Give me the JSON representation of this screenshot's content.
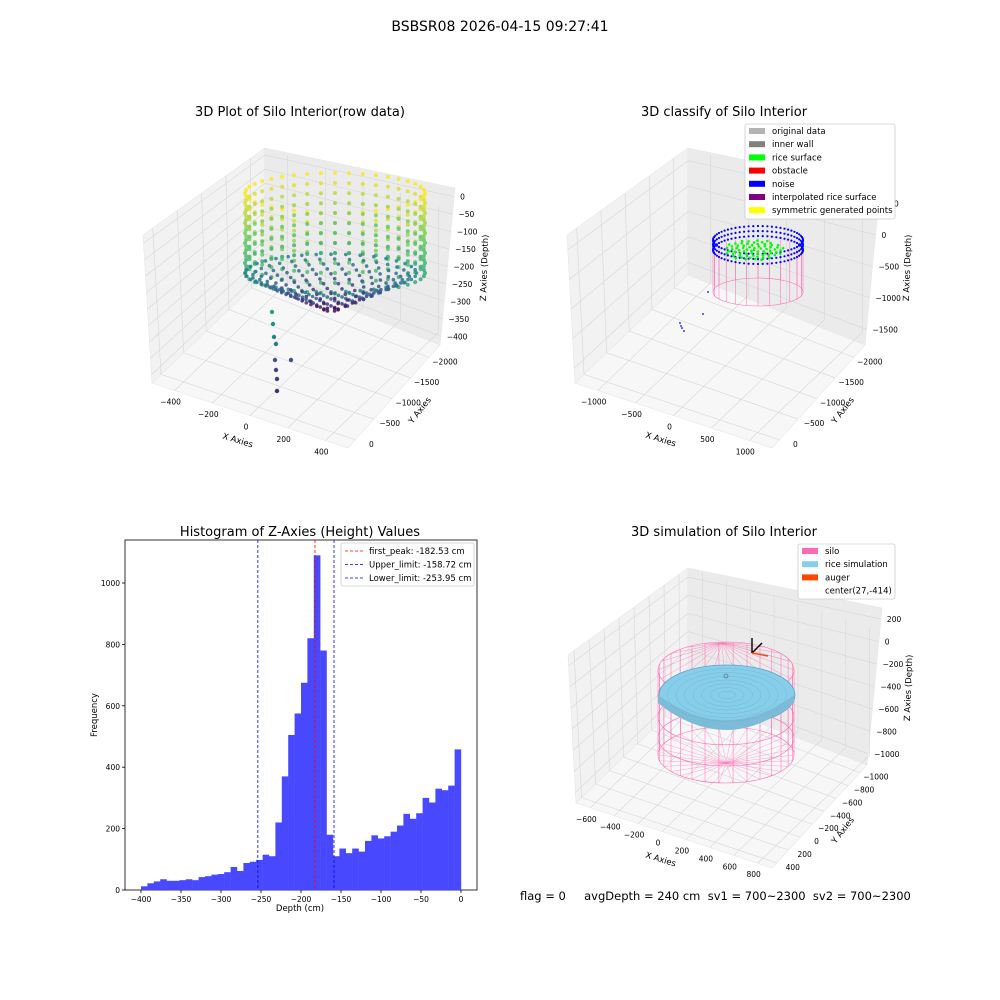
{
  "figure_title": "BSBSR08 2026-04-15 09:27:41",
  "status_text": "flag = 0     avgDepth = 240 cm  sv1 = 700~2300  sv2 = 700~2300",
  "chart_data": [
    {
      "type": "scatter",
      "title": "3D Plot of Silo Interior(row data)",
      "xlabel": "X Axies",
      "ylabel": "Y Axies",
      "zlabel": "Z Axies (Depth)",
      "x_ticks": [
        "−400",
        "−200",
        "0",
        "200",
        "400"
      ],
      "y_ticks": [
        "0",
        "−500",
        "−1000",
        "−1500",
        "−2000"
      ],
      "z_ticks": [
        "0",
        "−50",
        "−100",
        "−150",
        "−200",
        "−250",
        "−300",
        "−350",
        "−400"
      ],
      "xlim": [
        -450,
        450
      ],
      "ylim": [
        -2100,
        100
      ],
      "zlim": [
        -420,
        10
      ],
      "colormap": "viridis",
      "grid": true
    },
    {
      "type": "scatter",
      "title": "3D classify of Silo Interior",
      "xlabel": "X Axies",
      "ylabel": "Y Axies",
      "zlabel": "Z Axies (Depth)",
      "x_ticks": [
        "−1000",
        "−500",
        "0",
        "500",
        "1000"
      ],
      "y_ticks": [
        "0",
        "−500",
        "−1000",
        "−1500",
        "−2000"
      ],
      "z_ticks": [
        "500",
        "0",
        "−500",
        "−1000",
        "−1500"
      ],
      "xlim": [
        -1100,
        1100
      ],
      "ylim": [
        -2100,
        100
      ],
      "zlim": [
        -1500,
        500
      ],
      "legend_position": "top-right",
      "legend": [
        {
          "label": "original data",
          "color": "#b3b3b3"
        },
        {
          "label": "inner wall",
          "color": "#808080"
        },
        {
          "label": "rice surface",
          "color": "#00ff00"
        },
        {
          "label": "obstacle",
          "color": "#ff0000"
        },
        {
          "label": "noise",
          "color": "#0000ff"
        },
        {
          "label": "interpolated rice surface",
          "color": "#800080"
        },
        {
          "label": "symmetric generated points",
          "color": "#ffff00"
        }
      ],
      "grid": true
    },
    {
      "type": "bar",
      "title": "Histogram of Z-Axies (Height) Values",
      "xlabel": "Depth (cm)",
      "ylabel": "Frequency",
      "x_ticks": [
        "−400",
        "−350",
        "−300",
        "−250",
        "−200",
        "−150",
        "−100",
        "−50",
        "0"
      ],
      "y_ticks": [
        "0",
        "200",
        "400",
        "600",
        "800",
        "1000"
      ],
      "xlim": [
        -420,
        20
      ],
      "ylim": [
        0,
        1140
      ],
      "bin_start": -400,
      "bin_width": 8,
      "values": [
        12,
        22,
        28,
        35,
        30,
        30,
        32,
        35,
        32,
        42,
        45,
        50,
        52,
        58,
        75,
        62,
        88,
        92,
        98,
        115,
        110,
        220,
        370,
        505,
        575,
        675,
        820,
        1090,
        780,
        180,
        110,
        135,
        120,
        135,
        125,
        160,
        178,
        168,
        175,
        190,
        210,
        248,
        232,
        250,
        300,
        285,
        330,
        325,
        340,
        458
      ],
      "bar_color": "#4848ff",
      "legend_position": "top-right",
      "lines": [
        {
          "label": "first_peak: -182.53 cm",
          "x": -182.53,
          "color": "#ff0000"
        },
        {
          "label": "Upper_limit: -158.72 cm",
          "x": -158.72,
          "color": "#0000ff"
        },
        {
          "label": "Lower_limit: -253.95 cm",
          "x": -253.95,
          "color": "#0000ff"
        }
      ]
    },
    {
      "type": "scatter",
      "title": "3D simulation of Silo Interior",
      "xlabel": "X Axies",
      "ylabel": "Y Axies",
      "zlabel": "Z Axies (Depth)",
      "x_ticks": [
        "−600",
        "−400",
        "−200",
        "0",
        "200",
        "400",
        "600",
        "800"
      ],
      "y_ticks": [
        "400",
        "200",
        "0",
        "−200",
        "−400",
        "−600",
        "−800",
        "−1000"
      ],
      "z_ticks": [
        "200",
        "0",
        "−200",
        "−400",
        "−600",
        "−800",
        "−1000"
      ],
      "xlim": [
        -700,
        850
      ],
      "ylim": [
        -1100,
        450
      ],
      "zlim": [
        -1150,
        350
      ],
      "legend_position": "top-right",
      "legend": [
        {
          "label": "silo",
          "color": "#ff69b4"
        },
        {
          "label": "rice simulation",
          "color": "#87ceeb"
        },
        {
          "label": "auger",
          "color": "#ff4500"
        },
        {
          "label": "center(27,-414)",
          "color": ""
        }
      ],
      "grid": true
    }
  ]
}
